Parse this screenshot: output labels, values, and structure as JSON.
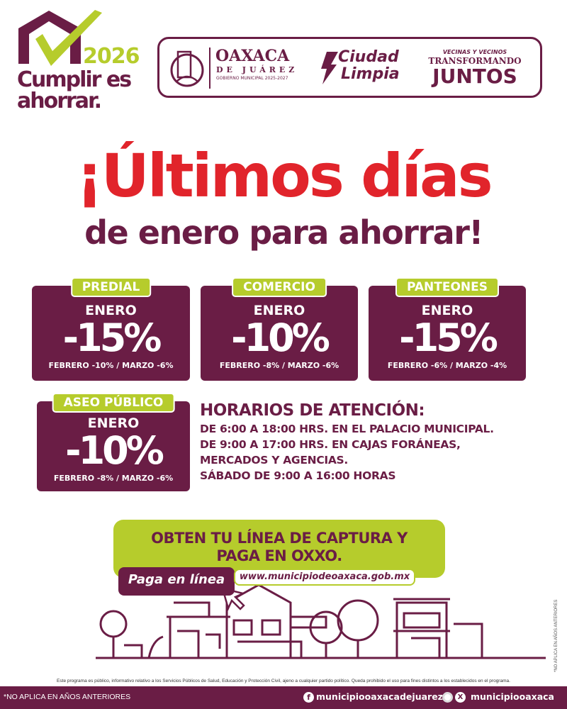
{
  "logo": {
    "year": "2026",
    "slogan_line1": "Cumplir es",
    "slogan_line2": "ahorrar."
  },
  "header": {
    "municipio": {
      "name": "OAXACA",
      "sub": "DE JUÁREZ",
      "gov": "GOBIERNO MUNICIPAL 2025-2027"
    },
    "ciudad_limpia": {
      "line1": "Ciudad",
      "line2": "Limpia"
    },
    "juntos": {
      "line1": "VECINAS Y VECINOS",
      "line2": "TRANSFORMANDO",
      "line3": "JUNTOS"
    }
  },
  "headline": {
    "line1": "¡Últimos días",
    "line2": "de enero para ahorrar!"
  },
  "cards": [
    {
      "tab": "PREDIAL",
      "month": "ENERO",
      "discount": "-15%",
      "after": "FEBRERO -10% / MARZO -6%"
    },
    {
      "tab": "COMERCIO",
      "month": "ENERO",
      "discount": "-10%",
      "after": "FEBRERO -8% / MARZO -6%"
    },
    {
      "tab": "PANTEONES",
      "month": "ENERO",
      "discount": "-15%",
      "after": "FEBRERO -6% / MARZO -4%"
    },
    {
      "tab": "ASEO PÚBLICO",
      "month": "ENERO",
      "discount": "-10%",
      "after": "FEBRERO -8% / MARZO -6%"
    }
  ],
  "horarios": {
    "title": "HORARIOS DE ATENCIÓN:",
    "lines": [
      "DE 6:00 A 18:00 HRS. EN EL PALACIO MUNICIPAL.",
      "DE 9:00 A 17:00 HRS. EN CAJAS FORÁNEAS,",
      "MERCADOS Y AGENCIAS.",
      "SÁBADO DE 9:00 A 16:00 HORAS"
    ]
  },
  "cta": {
    "line1": "OBTEN TU LÍNEA DE CAPTURA Y",
    "line2": "PAGA EN OXXO.",
    "online": "Paga en línea",
    "url": "www.municipiodeoaxaca.gob.mx"
  },
  "side_note": "*NO APLICA EN AÑOS ANTERIORES",
  "disclaimer": "Este programa es público, informativo relativo a los Servicios Públicos de Salud, Educación y Protección Civil, ajeno a cualquier partido político. Queda prohibido el uso para fines distintos a los establecidos en el programa.",
  "footer": {
    "note": "*NO APLICA EN AÑOS ANTERIORES",
    "facebook": "municipiooaxacadejuarez",
    "instagram_x": "municipiooaxaca"
  },
  "colors": {
    "maroon": "#6a1d45",
    "lime": "#b6cc2c",
    "red": "#e1242b"
  }
}
